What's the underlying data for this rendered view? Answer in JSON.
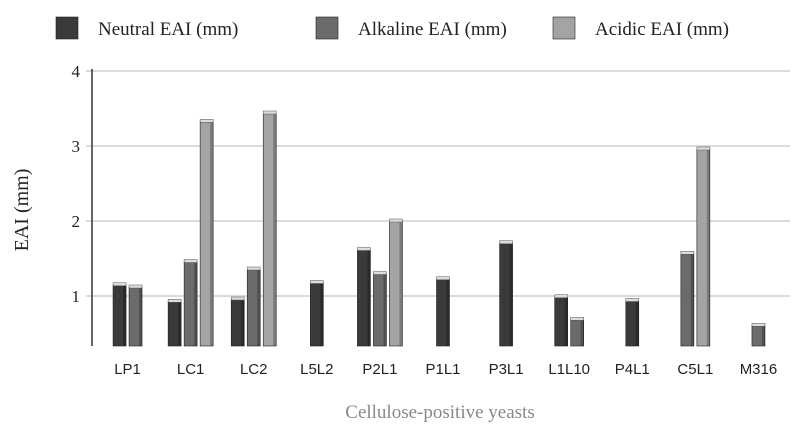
{
  "chart_data": {
    "type": "bar",
    "title": "",
    "xlabel": "Cellulose-positive yeasts",
    "ylabel": "EAI (mm)",
    "ylim": [
      0.3,
      4
    ],
    "yticks": [
      1,
      2,
      3,
      4
    ],
    "grid": true,
    "legend_position": "top",
    "categories": [
      "LP1",
      "LC1",
      "LC2",
      "L5L2",
      "P2L1",
      "P1L1",
      "P3L1",
      "L1L10",
      "P4L1",
      "C5L1",
      "M316"
    ],
    "series": [
      {
        "name": "Neutral EAI (mm)",
        "color": "#3a3a3a",
        "values": [
          1.15,
          0.93,
          0.96,
          1.18,
          1.62,
          1.23,
          1.71,
          0.99,
          0.94,
          null,
          null
        ]
      },
      {
        "name": "Alkaline EAI (mm)",
        "color": "#6b6b6b",
        "values": [
          1.12,
          1.46,
          1.36,
          null,
          1.3,
          null,
          null,
          0.69,
          null,
          1.57,
          0.61
        ]
      },
      {
        "name": "Acidic EAI (mm)",
        "color": "#a4a4a4",
        "values": [
          null,
          3.33,
          3.44,
          null,
          2.0,
          null,
          null,
          null,
          null,
          2.96,
          null
        ]
      }
    ]
  }
}
